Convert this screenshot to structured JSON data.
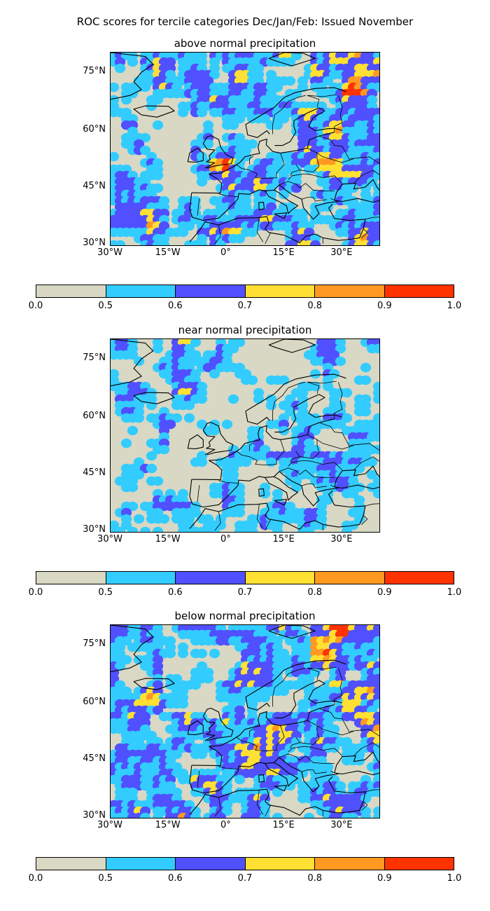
{
  "figure_title": "ROC scores for tercile categories Dec/Jan/Feb: Issued November",
  "panels": [
    {
      "title": "above normal precipitation"
    },
    {
      "title": "near normal precipitation"
    },
    {
      "title": "below normal precipitation"
    }
  ],
  "latitude_labels": [
    "75°N",
    "60°N",
    "45°N",
    "30°N"
  ],
  "longitude_labels": [
    "30°W",
    "15°W",
    "0°",
    "15°E",
    "30°E"
  ],
  "colorbar": {
    "ticks": [
      "0.0",
      "0.5",
      "0.6",
      "0.7",
      "0.8",
      "0.9",
      "1.0"
    ],
    "colors": [
      "#d8d8c4",
      "#33ccff",
      "#5050ff",
      "#ffe033",
      "#ff9922",
      "#ff3300"
    ]
  },
  "chart_data": {
    "type": "heatmap",
    "title": "ROC scores for tercile categories Dec/Jan/Feb: Issued November",
    "subplots": [
      "above normal precipitation",
      "near normal precipitation",
      "below normal precipitation"
    ],
    "levels": [
      0.0,
      0.5,
      0.6,
      0.7,
      0.8,
      0.9,
      1.0
    ],
    "lon_range": [
      -30,
      40
    ],
    "lat_range": [
      30,
      80
    ],
    "lon_ticks": [
      -30,
      -15,
      0,
      15,
      30
    ],
    "lat_ticks": [
      30,
      45,
      60,
      75
    ]
  }
}
